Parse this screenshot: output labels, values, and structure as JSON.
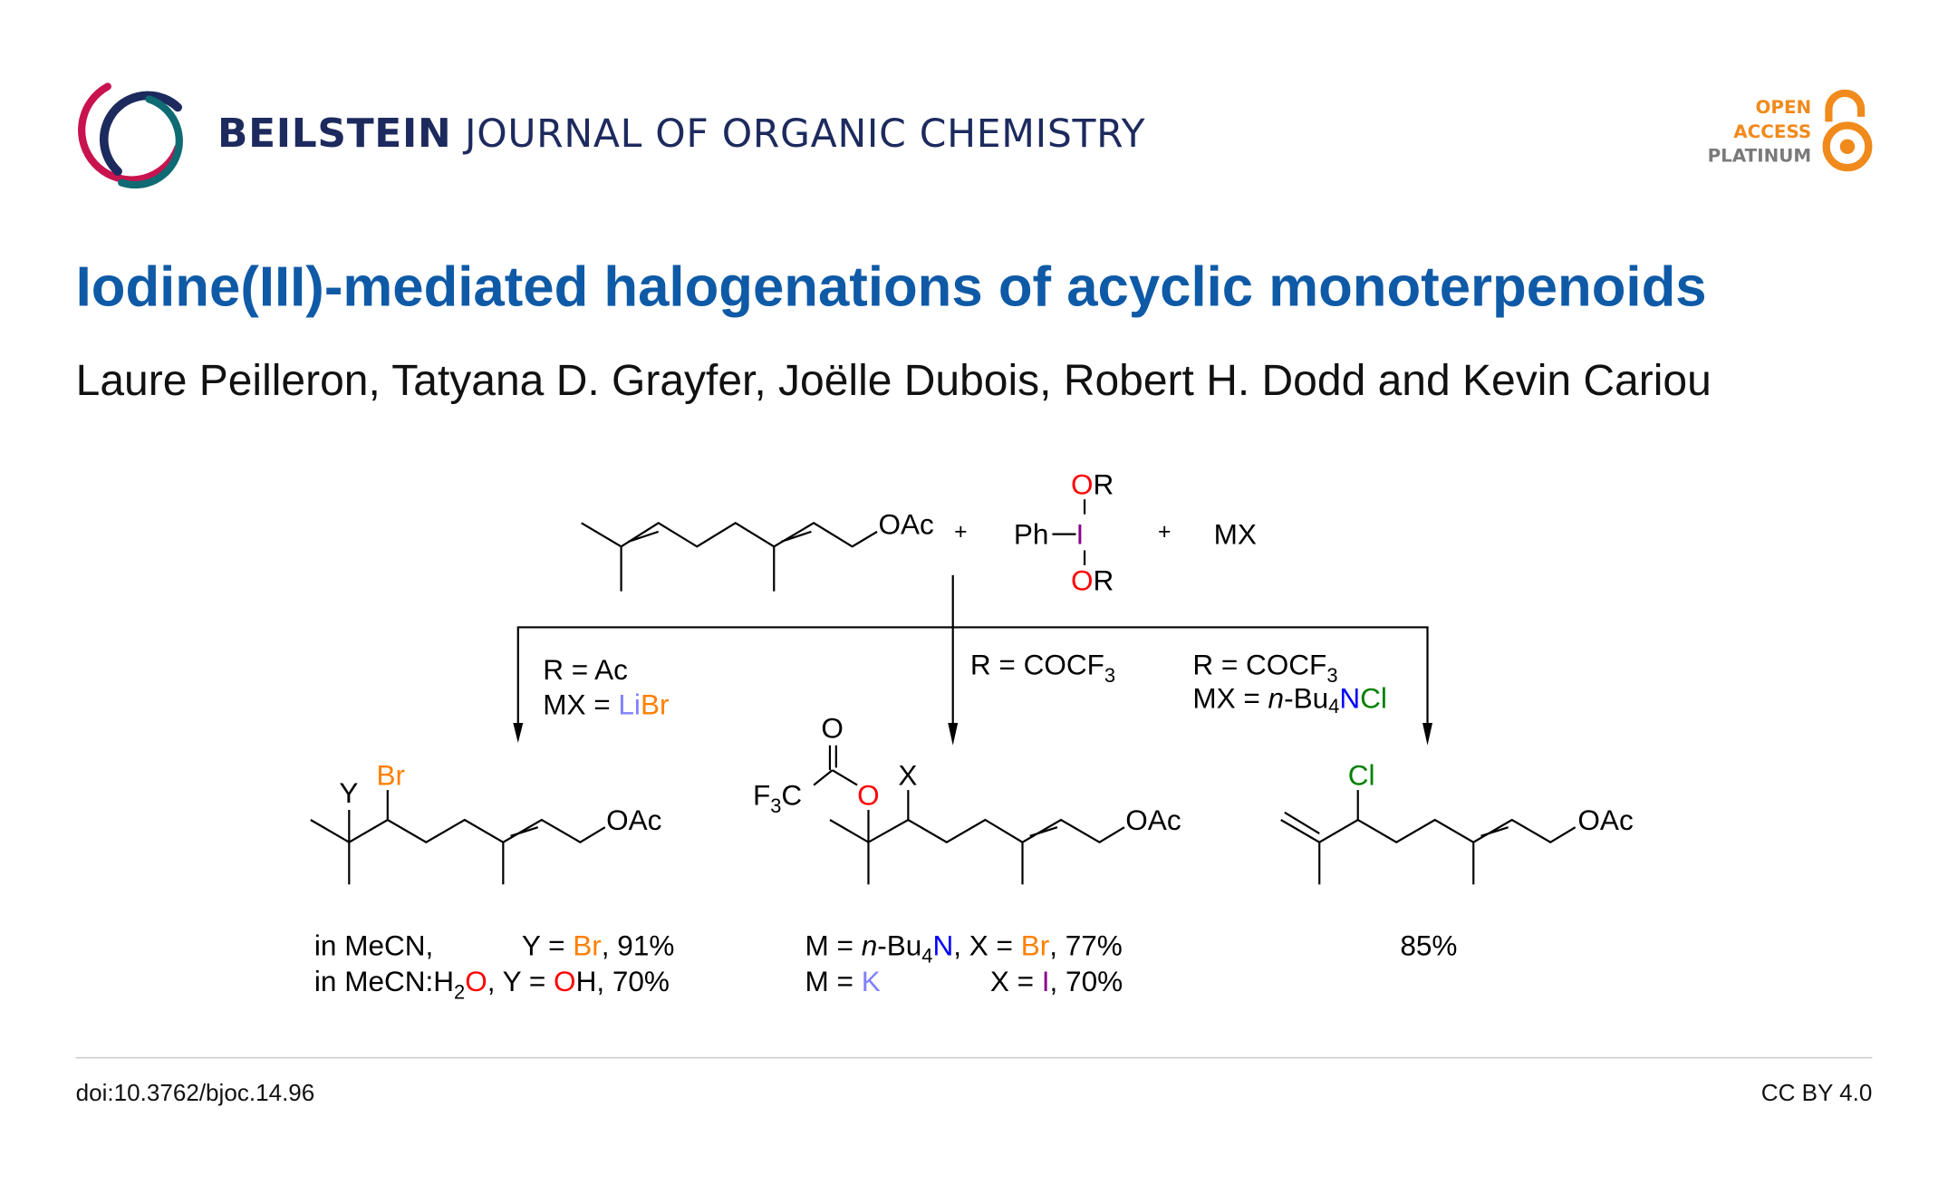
{
  "header": {
    "journal_bold": "BEILSTEIN",
    "journal_rest": "JOURNAL OF ORGANIC CHEMISTRY",
    "open_access": [
      "OPEN",
      "ACCESS",
      "PLATINUM"
    ],
    "logo_icon": "beilstein-swirl-logo",
    "oa_icon": "open-lock-icon"
  },
  "article": {
    "title": "Iodine(III)-mediated halogenations of acyclic monoterpenoids",
    "authors": "Laure Peilleron, Tatyana D. Grayfer, Joëlle Dubois, Robert H. Dodd and Kevin Cariou"
  },
  "colors": {
    "title": "#0f5aa6",
    "journal": "#1d2a5e",
    "oxygen": "#ff0000",
    "iodine": "#8b008b",
    "bromine": "#ff8000",
    "chlorine": "#008000",
    "lithium_potassium": "#8080ff",
    "nitrogen": "#0000ff",
    "oa_orange": "#f08a1c"
  },
  "scheme": {
    "reactant": {
      "oac": "OAc",
      "plus1": "+",
      "ph": "Ph",
      "iodine": "I",
      "o": "O",
      "r": "R",
      "plus2": "+",
      "mx": "MX"
    },
    "conditions": {
      "left": {
        "r_line": "R = Ac",
        "mx_prefix": "MX = ",
        "li": "Li",
        "br": "Br"
      },
      "middle": {
        "r_line": "R = COCF",
        "sub3": "3"
      },
      "right": {
        "r_line": "R = COCF",
        "sub3": "3",
        "mx_prefix": "MX = ",
        "n_italic": "n",
        "bu": "-Bu",
        "sub4": "4",
        "n": "N",
        "cl": "Cl"
      }
    },
    "products": {
      "p1": {
        "y": "Y",
        "br": "Br",
        "oac": "OAc"
      },
      "p2": {
        "f3c_f": "F",
        "f3c_3": "3",
        "f3c_c": "C",
        "o_carbonyl": "O",
        "o_ester": "O",
        "x": "X",
        "oac": "OAc"
      },
      "p3": {
        "cl": "Cl",
        "oac": "OAc"
      }
    },
    "results": {
      "p1": {
        "line1": {
          "a": "in MeCN,",
          "b": "Y = ",
          "br": "Br",
          "c": ",  91%"
        },
        "line2": {
          "a": "in MeCN:H",
          "sub2": "2",
          "o": "O",
          "b": ", Y = ",
          "o2": "O",
          "c": "H, 70%"
        }
      },
      "p2": {
        "line1": {
          "a": "M = ",
          "n_italic": "n",
          "b": "-Bu",
          "sub4": "4",
          "n": "N",
          "c": ",  X = ",
          "br": "Br",
          "d": ", 77%"
        },
        "line2": {
          "a": "M = ",
          "k": "K",
          "b": "X = ",
          "i": "I",
          "c": ",    70%"
        }
      },
      "p3": {
        "yield": "85%"
      }
    }
  },
  "footer": {
    "doi": "doi:10.3762/bjoc.14.96",
    "license": "CC BY 4.0"
  }
}
